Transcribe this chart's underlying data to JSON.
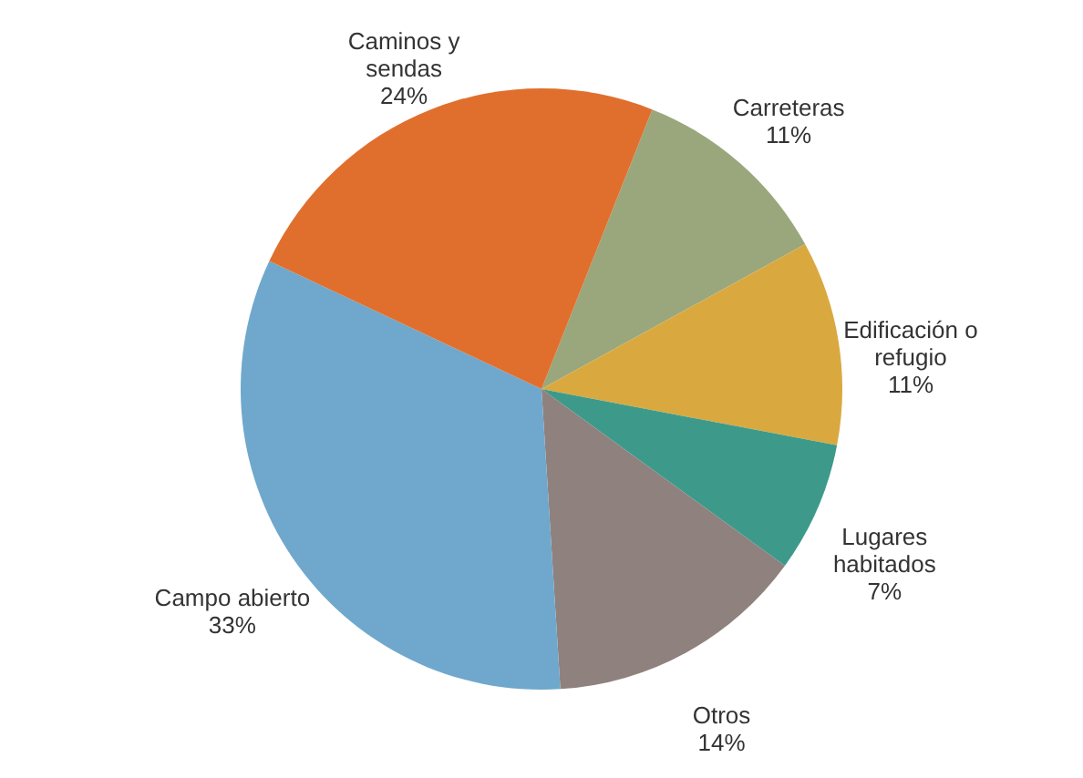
{
  "chart_data": {
    "type": "pie",
    "categories": [
      "Carreteras",
      "Edificación o refugio",
      "Lugares habitados",
      "Otros",
      "Campo abierto",
      "Caminos y sendas"
    ],
    "values": [
      11,
      11,
      7,
      14,
      33,
      24
    ],
    "colors": [
      "#9aa77c",
      "#d9a940",
      "#3d9a8a",
      "#8f817e",
      "#6fa8cc",
      "#e06f2e"
    ],
    "value_labels": [
      "11%",
      "11%",
      "7%",
      "14%",
      "33%",
      "24%"
    ]
  }
}
